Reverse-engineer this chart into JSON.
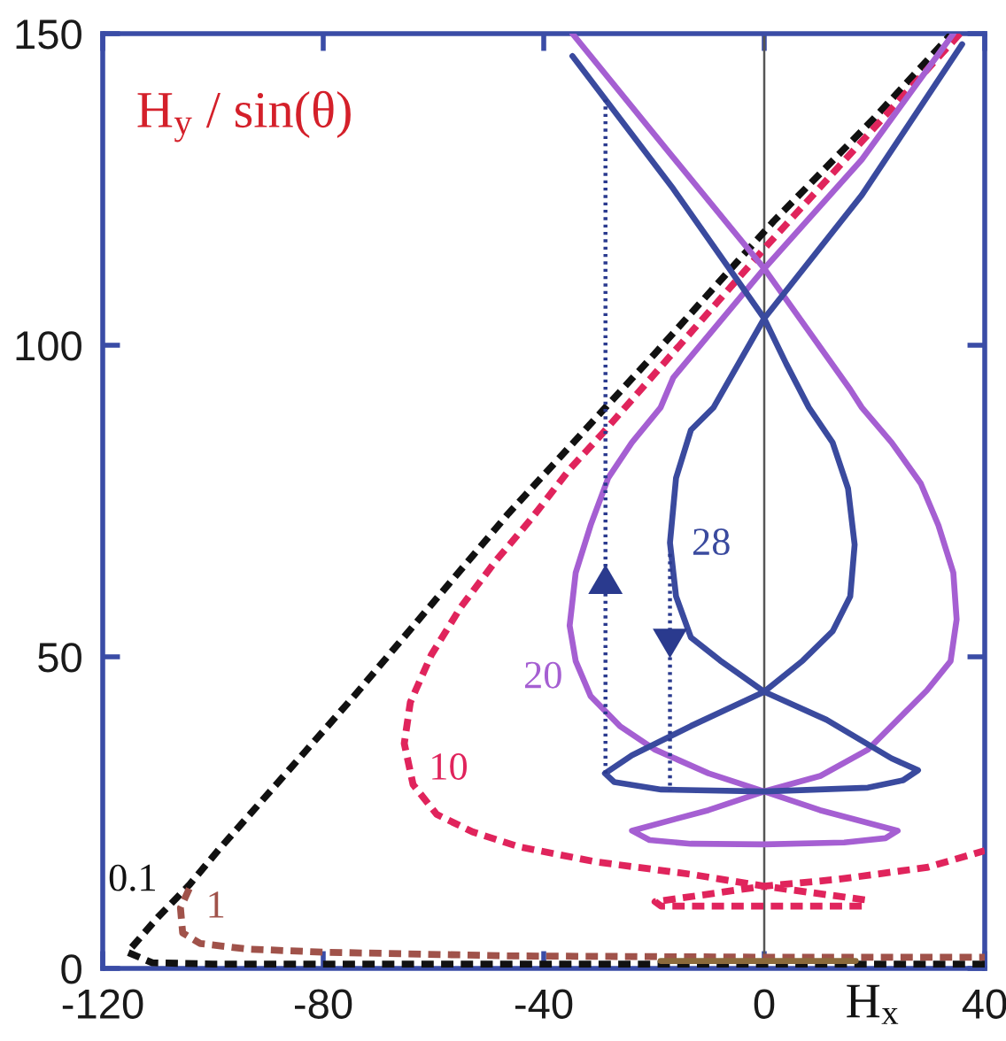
{
  "chart_data": {
    "type": "line",
    "xlabel": "H$_{x}$",
    "ylabel": "H$_{y}$ / sin(θ)",
    "xlim": [
      -120,
      40
    ],
    "ylim": [
      0,
      150
    ],
    "xticks": [
      -120,
      -80,
      -40,
      0,
      40
    ],
    "yticks": [
      0,
      50,
      100,
      150
    ],
    "ref_lines": [
      {
        "axis": "x",
        "value": 0,
        "color": "#555555"
      }
    ],
    "series": [
      {
        "name": "0.1",
        "color": "#111111",
        "line_style": "dashed",
        "x": [
          40,
          -100,
          -111,
          -115.5,
          -110,
          -104.3,
          -99,
          -74.4,
          -46.4,
          -20,
          1.7,
          19.9,
          34
        ],
        "values": [
          0.7,
          0.7,
          0.9,
          2.6,
          8.2,
          13.4,
          19,
          43.7,
          73,
          98.5,
          119.9,
          136.4,
          150
        ]
      },
      {
        "name": "1",
        "color": "#a0524a",
        "line_style": "dashed",
        "x": [
          -104.3,
          -105.9,
          -105.5,
          -102.3,
          -93.7,
          -79.8,
          -45.5,
          0,
          40
        ],
        "values": [
          12.8,
          9.7,
          5.7,
          4.0,
          3.1,
          2.6,
          2.0,
          1.8,
          1.8
        ]
      },
      {
        "color": "#8c6a3c",
        "line_style": "solid",
        "x": [
          -18.8,
          16.6
        ],
        "values": [
          1.2,
          1.2
        ]
      },
      {
        "name": "10",
        "color": "#e0245c",
        "line_style": "dashed",
        "x": [
          35.5,
          21.5,
          0.5,
          -29.4,
          -35.3,
          -42.3,
          -48.7,
          -55.1,
          -60.4,
          -64.2,
          -65.3,
          -63.7,
          -59.4,
          -52.9,
          -44.4,
          -30.5,
          -13.3,
          0,
          18.3,
          17.7,
          0,
          -18.7,
          -19.8,
          0,
          13.4,
          29.5,
          40
        ],
        "values": [
          150,
          136.4,
          116,
          85.8,
          80.1,
          72.1,
          65.4,
          57.9,
          50.3,
          42.7,
          36.1,
          29.5,
          24.7,
          21.9,
          19.5,
          17.1,
          15.1,
          13.2,
          11.0,
          10.0,
          10.0,
          10.0,
          10.7,
          13.2,
          14.3,
          16.2,
          18.9
        ]
      },
      {
        "name": "20",
        "color": "#a55fd2",
        "line_style": "solid",
        "x": [
          -34.8,
          -17.6,
          0,
          15.6,
          17.7,
          23.1,
          28.4,
          31.6,
          34.3,
          34.9,
          33.8,
          29.5,
          24.2,
          18.8,
          10.2,
          0,
          -10.1,
          -24,
          -20.8,
          -13.3,
          0,
          14.5,
          22,
          24.2,
          10.1,
          0,
          -10.1,
          -19.8,
          -26.2,
          -31.5,
          -34.2,
          -35.3,
          -34.2,
          -31.5,
          -28.3,
          -24,
          -18.8,
          -16.5,
          0,
          17.7,
          34.3
        ],
        "values": [
          150,
          131.3,
          112.3,
          92.9,
          90,
          84.4,
          77.8,
          71.1,
          63.5,
          56,
          49.3,
          44.6,
          39.9,
          35.1,
          30.9,
          28.4,
          25.4,
          22.1,
          20.6,
          20,
          19.9,
          20.2,
          20.9,
          22.1,
          25.4,
          28.4,
          31.3,
          35.1,
          38.9,
          43.7,
          49.3,
          55,
          63.5,
          71.1,
          78.7,
          84.4,
          90,
          94.8,
          112.3,
          129.8,
          150
        ]
      },
      {
        "name": "28",
        "color": "#3a4a9e",
        "line_style": "solid",
        "x": [
          -34.8,
          -16.5,
          0,
          4,
          8.1,
          12.4,
          15.2,
          16.4,
          15.6,
          12.4,
          7,
          0,
          -13.3,
          -24,
          -28.9,
          -27.2,
          -18.7,
          0,
          18.8,
          25.2,
          27.9,
          23.1,
          11.3,
          0,
          -8,
          -13.3,
          -16,
          -17.1,
          -16,
          -13.3,
          -9.2,
          0,
          17.7,
          35.9
        ],
        "values": [
          146.4,
          125.1,
          104.3,
          97,
          90,
          84.4,
          77,
          68,
          59.7,
          54.1,
          49.4,
          44.4,
          38.9,
          34.2,
          31.3,
          29.9,
          28.7,
          28.4,
          29,
          30.2,
          31.8,
          33.7,
          39.9,
          44.4,
          49.4,
          53.1,
          59.7,
          68.3,
          78.7,
          86.4,
          90,
          104.3,
          124.1,
          148.3
        ]
      },
      {
        "color": "#2a3a8e",
        "line_style": "dotted",
        "x": [
          -28.8,
          -28.8
        ],
        "values": [
          31.3,
          139.4
        ]
      },
      {
        "color": "#2a3a8e",
        "line_style": "dotted",
        "x": [
          -17.1,
          -17.1
        ],
        "values": [
          66.5,
          28.5
        ]
      }
    ]
  }
}
